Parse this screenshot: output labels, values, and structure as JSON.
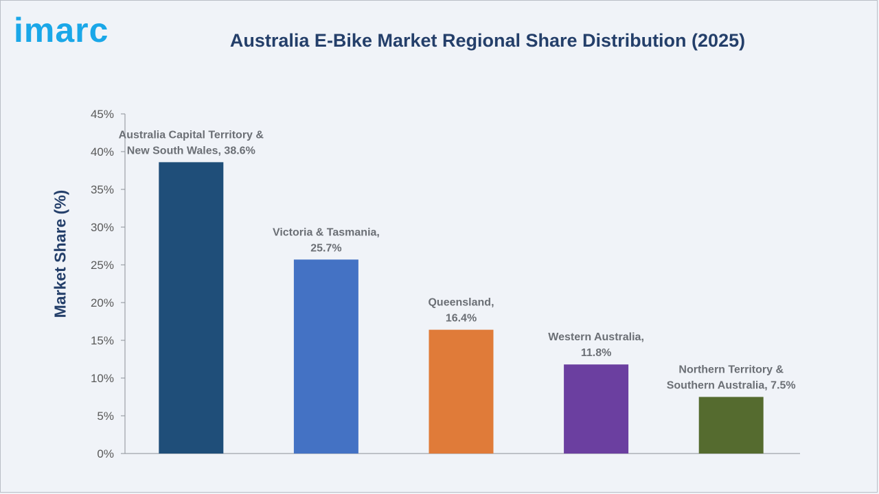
{
  "brand": {
    "logo_text": "imarc"
  },
  "colors": {
    "title": "#243f6a",
    "logo": "#1aa7e8",
    "axis": "#8a8f96",
    "label": "#6b6f75"
  },
  "chart_data": {
    "type": "bar",
    "title": "Australia E-Bike Market Regional Share Distribution (2025)",
    "xlabel": "",
    "ylabel": "Market Share (%)",
    "ylim": [
      0,
      45
    ],
    "yticks": [
      0,
      5,
      10,
      15,
      20,
      25,
      30,
      35,
      40,
      45
    ],
    "ytick_labels": [
      "0%",
      "5%",
      "10%",
      "15%",
      "20%",
      "25%",
      "30%",
      "35%",
      "40%",
      "45%"
    ],
    "grid": false,
    "legend": "none",
    "categories": [
      "Australia Capital Territory & New South Wales",
      "Victoria & Tasmania",
      "Queensland",
      "Western Australia",
      "Northern Territory & Southern Australia"
    ],
    "values": [
      38.6,
      25.7,
      16.4,
      11.8,
      7.5
    ],
    "bar_colors": [
      "#1f4e79",
      "#4472c4",
      "#e07b39",
      "#6b3fa0",
      "#556b2f"
    ],
    "data_labels": [
      [
        "Australia Capital Territory &",
        "New South Wales, 38.6%"
      ],
      [
        "Victoria & Tasmania,",
        "25.7%"
      ],
      [
        "Queensland,",
        "16.4%"
      ],
      [
        "Western Australia,",
        "11.8%"
      ],
      [
        "Northern Territory &",
        "Southern Australia, 7.5%"
      ]
    ]
  }
}
